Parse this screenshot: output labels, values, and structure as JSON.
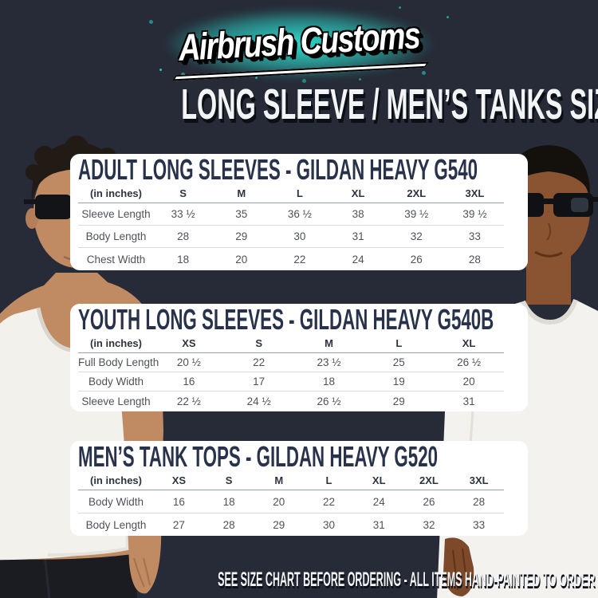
{
  "brand": {
    "logo_text": "Airbrush Customs"
  },
  "header": {
    "title": "LONG SLEEVE / MEN’S TANKS SIZE CHART"
  },
  "footer": {
    "note": "SEE SIZE CHART BEFORE ORDERING - ALL ITEMS HAND-PAINTED TO ORDER"
  },
  "colors": {
    "background": "#262b37",
    "card": "#ffffff",
    "heading_text": "#28324a",
    "glow_cyan": "#2ee6d6",
    "title_white": "#f3f4f6"
  },
  "tables": [
    {
      "title": "ADULT LONG SLEEVES - GILDAN HEAVY G540",
      "unit_label": "(in inches)",
      "columns": [
        "S",
        "M",
        "L",
        "XL",
        "2XL",
        "3XL"
      ],
      "rows": [
        {
          "label": "Sleeve Length",
          "values": [
            "33 ½",
            "35",
            "36 ½",
            "38",
            "39 ½",
            "39 ½"
          ]
        },
        {
          "label": "Body Length",
          "values": [
            "28",
            "29",
            "30",
            "31",
            "32",
            "33"
          ]
        },
        {
          "label": "Chest Width",
          "values": [
            "18",
            "20",
            "22",
            "24",
            "26",
            "28"
          ]
        }
      ]
    },
    {
      "title": "YOUTH LONG SLEEVES - GILDAN HEAVY G540B",
      "unit_label": "(in inches)",
      "columns": [
        "XS",
        "S",
        "M",
        "L",
        "XL"
      ],
      "rows": [
        {
          "label": "Full Body Length",
          "values": [
            "20 ½",
            "22",
            "23 ½",
            "25",
            "26 ½"
          ]
        },
        {
          "label": "Body Width",
          "values": [
            "16",
            "17",
            "18",
            "19",
            "20"
          ]
        },
        {
          "label": "Sleeve Length",
          "values": [
            "22 ½",
            "24 ½",
            "26 ½",
            "29",
            "31"
          ]
        }
      ]
    },
    {
      "title": "MEN’S TANK TOPS - GILDAN HEAVY G520",
      "unit_label": "(in inches)",
      "columns": [
        "XS",
        "S",
        "M",
        "L",
        "XL",
        "2XL",
        "3XL"
      ],
      "rows": [
        {
          "label": "Body Width",
          "values": [
            "16",
            "18",
            "20",
            "22",
            "24",
            "26",
            "28"
          ]
        },
        {
          "label": "Body Length",
          "values": [
            "27",
            "28",
            "29",
            "30",
            "31",
            "32",
            "33"
          ]
        }
      ]
    }
  ]
}
